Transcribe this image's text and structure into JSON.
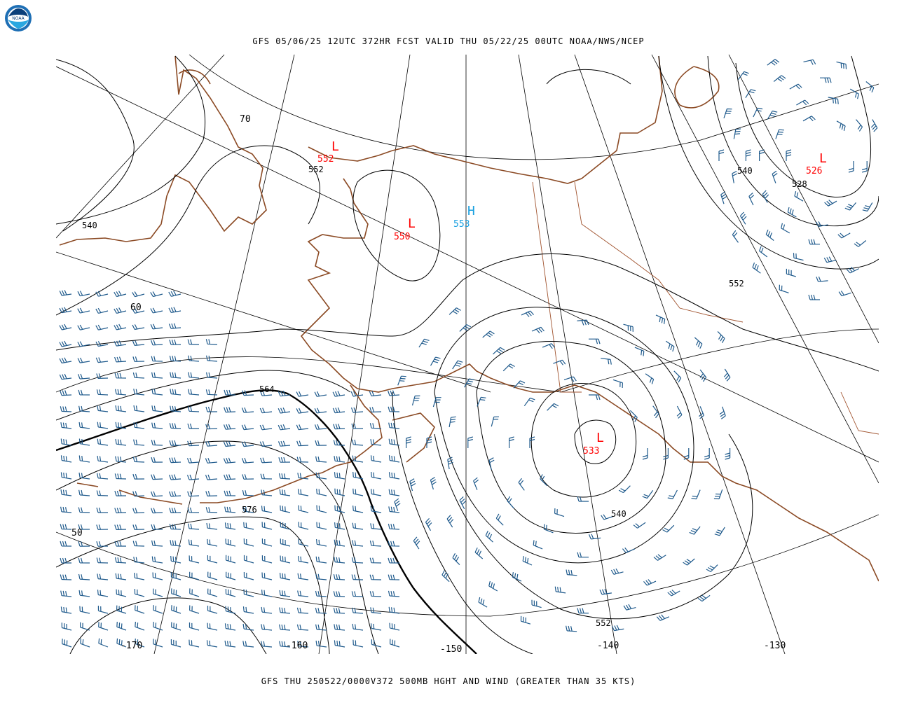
{
  "header": {
    "top_title": "GFS 05/06/25 12UTC 372HR FCST VALID THU 05/22/25 00UTC NOAA/NWS/NCEP",
    "bottom_title": "GFS THU 250522/0000V372 500MB HGHT AND WIND (GREATER THAN 35 KTS)",
    "logo_text": "NOAA"
  },
  "colors": {
    "coast": "#8b4a24",
    "border": "#a0522d",
    "contour": "#000000",
    "barb": "#1f5a8c",
    "low": "#ff0000",
    "high": "#1aa0e0"
  },
  "centers": [
    {
      "kind": "L",
      "value": "552"
    },
    {
      "kind": "L",
      "value": "550"
    },
    {
      "kind": "H",
      "value": "553"
    },
    {
      "kind": "L",
      "value": "533"
    },
    {
      "kind": "L",
      "value": "526"
    }
  ],
  "contour_labels": [
    "552",
    "540",
    "528",
    "552",
    "540",
    "564",
    "576",
    "540",
    "552"
  ],
  "lat_labels": [
    "70",
    "60",
    "50"
  ],
  "lon_labels": [
    "-170",
    "-160",
    "-150",
    "-140",
    "-130"
  ]
}
